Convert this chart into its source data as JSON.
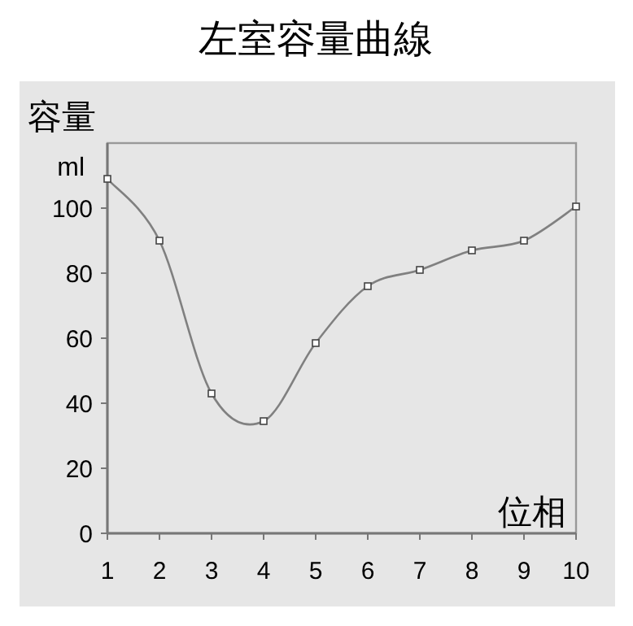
{
  "chart_data": {
    "type": "line",
    "title": "左室容量曲線",
    "ylabel": "容量",
    "xlabel": "位相",
    "annotations": [
      "ml"
    ],
    "x": [
      1,
      2,
      3,
      4,
      5,
      6,
      7,
      8,
      9,
      10
    ],
    "series": [
      {
        "color": "#808080",
        "values": [
          109,
          90,
          43,
          34.5,
          58.5,
          76,
          81,
          87,
          90,
          100.5
        ]
      }
    ],
    "xlim": [
      1,
      10
    ],
    "xticks": [
      1,
      2,
      3,
      4,
      5,
      6,
      7,
      8,
      9,
      10
    ],
    "ylim": [
      0,
      120
    ],
    "yticks": [
      0,
      20,
      40,
      60,
      80,
      100
    ],
    "marker": "square"
  }
}
